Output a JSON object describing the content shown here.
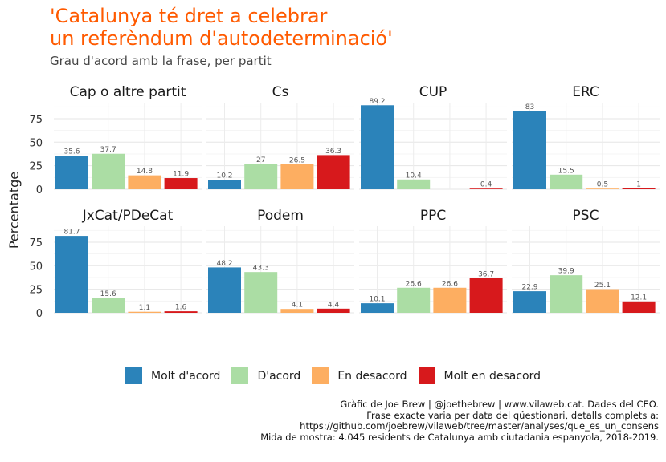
{
  "title_lines": [
    "'Catalunya té dret a celebrar",
    "un referèndum d'autodeterminació'"
  ],
  "subtitle": "Grau d'acord amb la frase, per partit",
  "colors": {
    "title": "#ff5a00",
    "Molt d'acord": "#2b83ba",
    "D'acord": "#abdda4",
    "En desacord": "#fdae61",
    "Molt en desacord": "#d7191c"
  },
  "caption_lines": [
    "Gràfic de Joe Brew | @joethebrew | www.vilaweb.cat. Dades del CEO.",
    "Frase exacte varia per data del qüestionari, detalls complets a:",
    "https://github.com/joebrew/vilaweb/tree/master/analyses/que_es_un_consens",
    "Mida de mostra: 4.045 residents de Catalunya amb ciutadania espanyola, 2018-2019."
  ],
  "chart_data": {
    "type": "bar",
    "facets_layout": "2 rows x 4 columns",
    "ylabel": "Percentatge",
    "xlabel": "",
    "y_ticks": [
      0,
      25,
      50,
      75
    ],
    "ylim": [
      0,
      92
    ],
    "grid": true,
    "legend_position": "bottom",
    "categories": [
      "Molt d'acord",
      "D'acord",
      "En desacord",
      "Molt en desacord"
    ],
    "panels": [
      {
        "name": "Cap o altre partit",
        "values": [
          35.6,
          37.7,
          14.8,
          11.9
        ],
        "labels": [
          "35.6",
          "37.7",
          "14.8",
          "11.9"
        ]
      },
      {
        "name": "Cs",
        "values": [
          10.2,
          27,
          26.5,
          36.3
        ],
        "labels": [
          "10.2",
          "27",
          "26.5",
          "36.3"
        ]
      },
      {
        "name": "CUP",
        "values": [
          89.2,
          10.4,
          null,
          0.4
        ],
        "labels": [
          "89.2",
          "10.4",
          null,
          "0.4"
        ]
      },
      {
        "name": "ERC",
        "values": [
          83,
          15.5,
          0.5,
          1
        ],
        "labels": [
          "83",
          "15.5",
          "0.5",
          "1"
        ]
      },
      {
        "name": "JxCat/PDeCat",
        "values": [
          81.7,
          15.6,
          1.1,
          1.6
        ],
        "labels": [
          "81.7",
          "15.6",
          "1.1",
          "1.6"
        ]
      },
      {
        "name": "Podem",
        "values": [
          48.2,
          43.3,
          4.1,
          4.4
        ],
        "labels": [
          "48.2",
          "43.3",
          "4.1",
          "4.4"
        ]
      },
      {
        "name": "PPC",
        "values": [
          10.1,
          26.6,
          26.6,
          36.7
        ],
        "labels": [
          "10.1",
          "26.6",
          "26.6",
          "36.7"
        ]
      },
      {
        "name": "PSC",
        "values": [
          22.9,
          39.9,
          25.1,
          12.1
        ],
        "labels": [
          "22.9",
          "39.9",
          "25.1",
          "12.1"
        ]
      }
    ]
  }
}
